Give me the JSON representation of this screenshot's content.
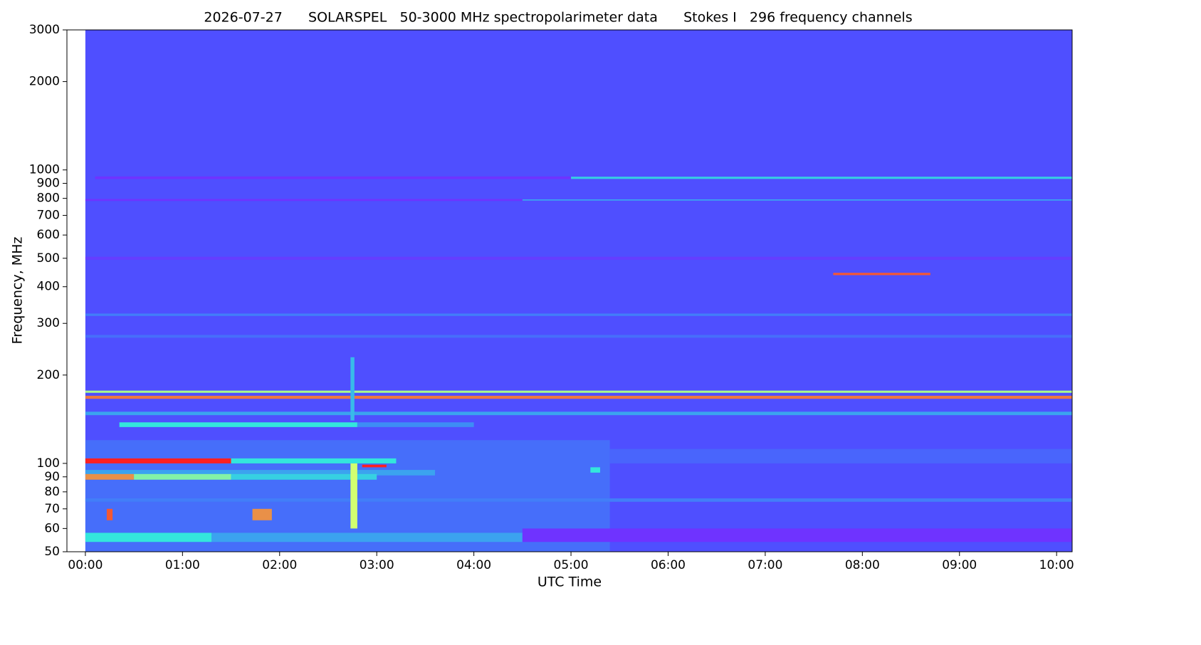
{
  "chart_data": {
    "type": "spectrogram",
    "title": "2026-07-27      SOLARSPEL   50-3000 MHz spectropolarimeter data      Stokes I   296 frequency channels",
    "xlabel": "UTC Time",
    "ylabel": "Frequency, MHz",
    "xlim": [
      -0.19,
      10.16
    ],
    "xticks": [
      {
        "value": 0,
        "label": "00:00"
      },
      {
        "value": 1,
        "label": "01:00"
      },
      {
        "value": 2,
        "label": "02:00"
      },
      {
        "value": 3,
        "label": "03:00"
      },
      {
        "value": 4,
        "label": "04:00"
      },
      {
        "value": 5,
        "label": "05:00"
      },
      {
        "value": 6,
        "label": "06:00"
      },
      {
        "value": 7,
        "label": "07:00"
      },
      {
        "value": 8,
        "label": "08:00"
      },
      {
        "value": 9,
        "label": "09:00"
      },
      {
        "value": 10,
        "label": "10:00"
      }
    ],
    "ylim": [
      50,
      3000
    ],
    "yscale": "log",
    "yticks": [
      50,
      60,
      70,
      80,
      90,
      100,
      200,
      300,
      400,
      500,
      600,
      700,
      800,
      900,
      1000,
      2000,
      3000
    ],
    "colormap": [
      "#7a2aff",
      "#4f4fff",
      "#3d8df5",
      "#33e6dc",
      "#d2ff70",
      "#ff2020"
    ],
    "features": [
      {
        "t": [
          0,
          10.16
        ],
        "f": [
          50,
          3000
        ],
        "level": 0.2
      },
      {
        "t": [
          0,
          5.4
        ],
        "f": [
          50,
          120
        ],
        "level": 0.3
      },
      {
        "t": [
          5.4,
          10.16
        ],
        "f": [
          100,
          112
        ],
        "level": 0.27
      },
      {
        "t": [
          0.1,
          5.0
        ],
        "f": [
          930,
          950
        ],
        "level": 0.05
      },
      {
        "t": [
          5.0,
          10.16
        ],
        "f": [
          932,
          948
        ],
        "level": 0.55
      },
      {
        "t": [
          0,
          4.5
        ],
        "f": [
          784,
          796
        ],
        "level": 0.05
      },
      {
        "t": [
          4.5,
          10.16
        ],
        "f": [
          786,
          794
        ],
        "level": 0.45
      },
      {
        "t": [
          0,
          10.16
        ],
        "f": [
          494,
          506
        ],
        "level": 0.1
      },
      {
        "t": [
          7.7,
          8.7
        ],
        "f": [
          438,
          446
        ],
        "level": 0.95
      },
      {
        "t": [
          0,
          10.16
        ],
        "f": [
          318,
          324
        ],
        "level": 0.35
      },
      {
        "t": [
          0,
          10.16
        ],
        "f": [
          268,
          274
        ],
        "level": 0.3
      },
      {
        "t": [
          0,
          10.16
        ],
        "f": [
          174,
          177
        ],
        "level": 0.75
      },
      {
        "t": [
          0,
          10.16
        ],
        "f": [
          166,
          170
        ],
        "level": 0.92
      },
      {
        "t": [
          0,
          10.16
        ],
        "f": [
          146,
          150
        ],
        "level": 0.45
      },
      {
        "t": [
          0.35,
          2.8
        ],
        "f": [
          133,
          138
        ],
        "level": 0.6
      },
      {
        "t": [
          2.8,
          4.0
        ],
        "f": [
          133,
          138
        ],
        "level": 0.4
      },
      {
        "t": [
          0,
          1.5
        ],
        "f": [
          100,
          104
        ],
        "level": 1.0
      },
      {
        "t": [
          1.5,
          3.2
        ],
        "f": [
          100,
          104
        ],
        "level": 0.6
      },
      {
        "t": [
          2.85,
          3.1
        ],
        "f": [
          97,
          99
        ],
        "level": 1.0
      },
      {
        "t": [
          5.2,
          5.3
        ],
        "f": [
          93,
          97
        ],
        "level": 0.6
      },
      {
        "t": [
          0,
          3.6
        ],
        "f": [
          91,
          95
        ],
        "level": 0.45
      },
      {
        "t": [
          0,
          0.5
        ],
        "f": [
          88,
          92
        ],
        "level": 0.9
      },
      {
        "t": [
          0.5,
          1.5
        ],
        "f": [
          88,
          92
        ],
        "level": 0.7
      },
      {
        "t": [
          1.5,
          3.0
        ],
        "f": [
          88,
          92
        ],
        "level": 0.55
      },
      {
        "t": [
          0,
          10.16
        ],
        "f": [
          74,
          76
        ],
        "level": 0.35
      },
      {
        "t": [
          0.22,
          0.28
        ],
        "f": [
          64,
          70
        ],
        "level": 0.95
      },
      {
        "t": [
          1.72,
          1.92
        ],
        "f": [
          64,
          70
        ],
        "level": 0.9
      },
      {
        "t": [
          0,
          1.3
        ],
        "f": [
          54,
          58
        ],
        "level": 0.6
      },
      {
        "t": [
          1.3,
          4.5
        ],
        "f": [
          54,
          58
        ],
        "level": 0.45
      },
      {
        "t": [
          4.5,
          10.16
        ],
        "f": [
          54,
          60
        ],
        "level": 0.05
      },
      {
        "t": [
          2.73,
          2.77
        ],
        "f": [
          140,
          230
        ],
        "level": 0.5
      },
      {
        "t": [
          2.73,
          2.8
        ],
        "f": [
          60,
          100
        ],
        "level": 0.8
      }
    ]
  }
}
